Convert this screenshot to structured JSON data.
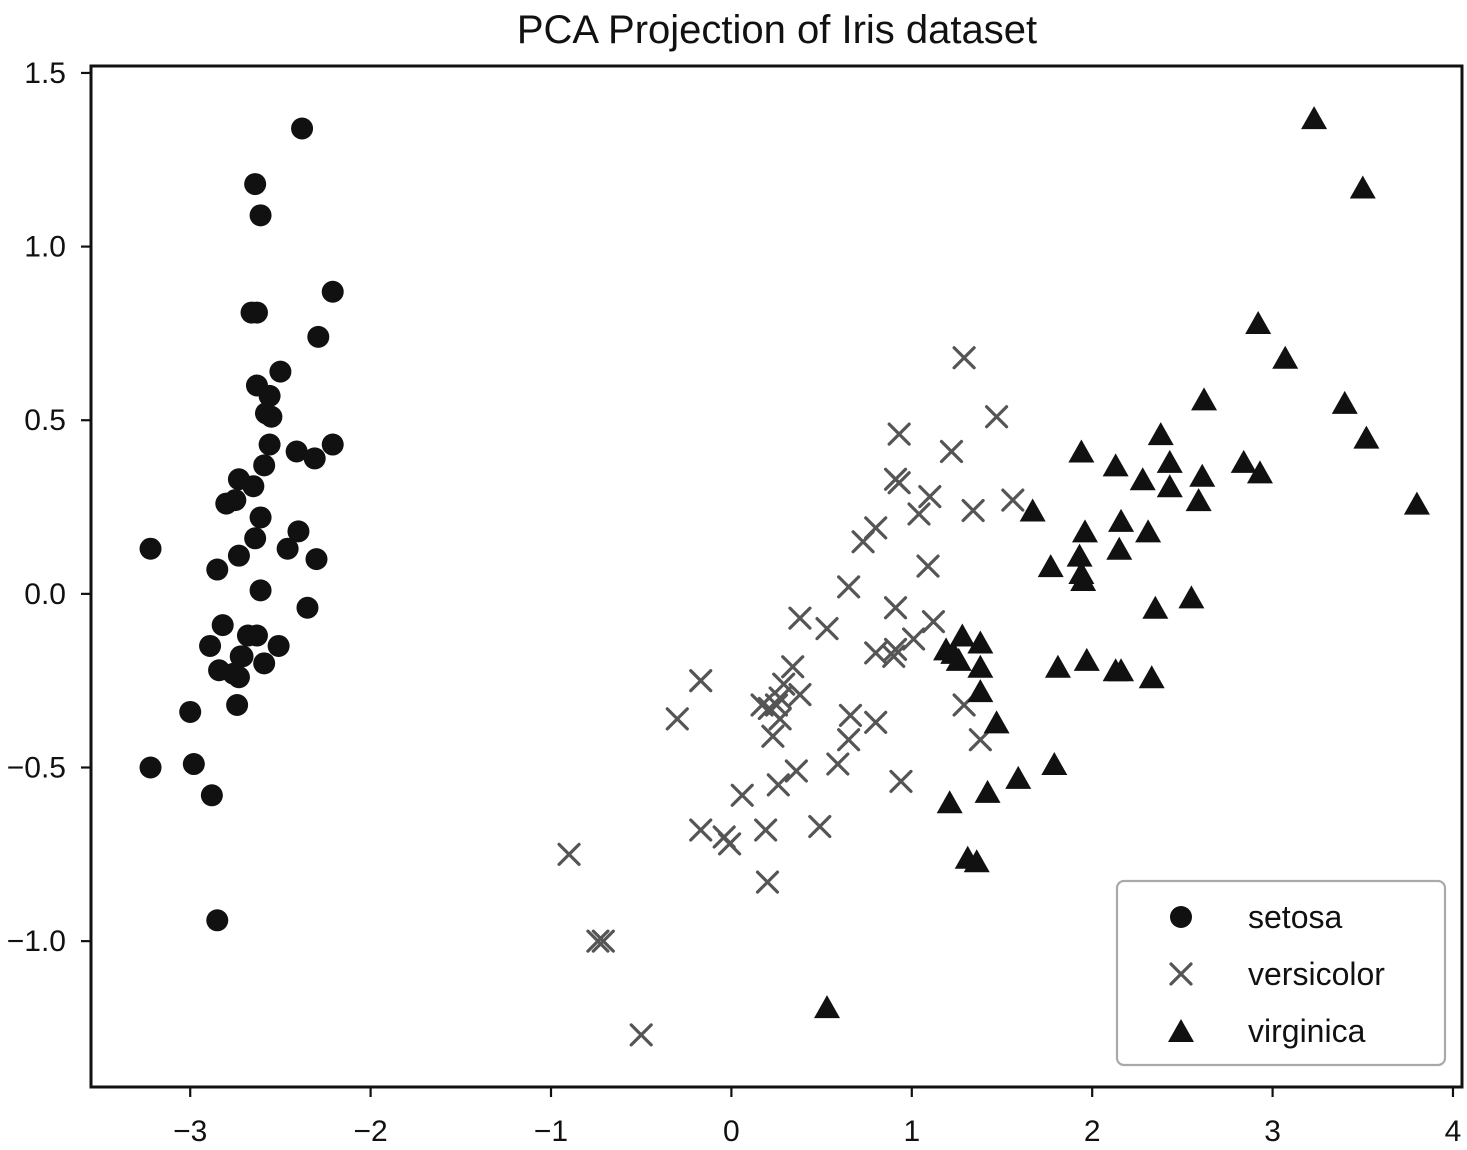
{
  "chart_data": {
    "type": "scatter",
    "title": "PCA Projection of Iris dataset",
    "xlabel": "",
    "ylabel": "",
    "xlim": [
      -3.55,
      4.05
    ],
    "ylim": [
      -1.42,
      1.52
    ],
    "grid": false,
    "legend_position": "bottom-right",
    "x_ticks": [
      {
        "value": -3,
        "label": "−3"
      },
      {
        "value": -2,
        "label": "−2"
      },
      {
        "value": -1,
        "label": "−1"
      },
      {
        "value": 0,
        "label": "0"
      },
      {
        "value": 1,
        "label": "1"
      },
      {
        "value": 2,
        "label": "2"
      },
      {
        "value": 3,
        "label": "3"
      },
      {
        "value": 4,
        "label": "4"
      }
    ],
    "y_ticks": [
      {
        "value": -1.0,
        "label": "−1.0"
      },
      {
        "value": -0.5,
        "label": "−0.5"
      },
      {
        "value": 0.0,
        "label": "0.0"
      },
      {
        "value": 0.5,
        "label": "0.5"
      },
      {
        "value": 1.0,
        "label": "1.0"
      },
      {
        "value": 1.5,
        "label": "1.5"
      }
    ],
    "series": [
      {
        "name": "setosa",
        "marker": "circle",
        "color": "#111111",
        "points": [
          [
            -2.38,
            1.34
          ],
          [
            -2.64,
            1.18
          ],
          [
            -2.61,
            1.09
          ],
          [
            -2.21,
            0.87
          ],
          [
            -2.63,
            0.81
          ],
          [
            -2.66,
            0.81
          ],
          [
            -2.29,
            0.74
          ],
          [
            -2.5,
            0.64
          ],
          [
            -2.63,
            0.6
          ],
          [
            -2.56,
            0.57
          ],
          [
            -2.58,
            0.52
          ],
          [
            -2.55,
            0.51
          ],
          [
            -2.56,
            0.43
          ],
          [
            -2.21,
            0.43
          ],
          [
            -2.41,
            0.41
          ],
          [
            -2.31,
            0.39
          ],
          [
            -2.59,
            0.37
          ],
          [
            -2.73,
            0.33
          ],
          [
            -2.65,
            0.31
          ],
          [
            -2.8,
            0.26
          ],
          [
            -2.75,
            0.27
          ],
          [
            -2.61,
            0.22
          ],
          [
            -2.4,
            0.18
          ],
          [
            -2.64,
            0.16
          ],
          [
            -2.73,
            0.11
          ],
          [
            -2.46,
            0.13
          ],
          [
            -2.3,
            0.1
          ],
          [
            -3.22,
            0.13
          ],
          [
            -2.85,
            0.07
          ],
          [
            -2.61,
            0.01
          ],
          [
            -2.35,
            -0.04
          ],
          [
            -2.82,
            -0.09
          ],
          [
            -2.89,
            -0.15
          ],
          [
            -2.51,
            -0.15
          ],
          [
            -2.68,
            -0.12
          ],
          [
            -2.63,
            -0.12
          ],
          [
            -2.71,
            -0.18
          ],
          [
            -2.59,
            -0.2
          ],
          [
            -2.72,
            -0.18
          ],
          [
            -2.84,
            -0.22
          ],
          [
            -2.76,
            -0.23
          ],
          [
            -2.73,
            -0.24
          ],
          [
            -2.74,
            -0.32
          ],
          [
            -3.0,
            -0.34
          ],
          [
            -2.98,
            -0.49
          ],
          [
            -3.22,
            -0.5
          ],
          [
            -2.88,
            -0.58
          ],
          [
            -2.85,
            -0.94
          ]
        ]
      },
      {
        "name": "versicolor",
        "marker": "x",
        "color": "#555555",
        "points": [
          [
            1.29,
            0.68
          ],
          [
            1.47,
            0.51
          ],
          [
            0.93,
            0.46
          ],
          [
            1.22,
            0.41
          ],
          [
            0.91,
            0.33
          ],
          [
            0.93,
            0.32
          ],
          [
            1.1,
            0.28
          ],
          [
            1.56,
            0.27
          ],
          [
            1.34,
            0.24
          ],
          [
            1.04,
            0.23
          ],
          [
            0.8,
            0.19
          ],
          [
            0.73,
            0.15
          ],
          [
            1.09,
            0.08
          ],
          [
            0.65,
            0.02
          ],
          [
            0.91,
            -0.04
          ],
          [
            0.38,
            -0.07
          ],
          [
            1.12,
            -0.08
          ],
          [
            0.53,
            -0.1
          ],
          [
            1.01,
            -0.13
          ],
          [
            0.8,
            -0.17
          ],
          [
            0.9,
            -0.18
          ],
          [
            0.91,
            -0.16
          ],
          [
            0.34,
            -0.21
          ],
          [
            -0.17,
            -0.25
          ],
          [
            0.29,
            -0.26
          ],
          [
            0.25,
            -0.32
          ],
          [
            0.38,
            -0.29
          ],
          [
            0.17,
            -0.32
          ],
          [
            0.27,
            -0.3
          ],
          [
            0.21,
            -0.33
          ],
          [
            0.27,
            -0.36
          ],
          [
            0.66,
            -0.35
          ],
          [
            0.8,
            -0.37
          ],
          [
            -0.3,
            -0.36
          ],
          [
            1.29,
            -0.32
          ],
          [
            0.23,
            -0.41
          ],
          [
            0.65,
            -0.42
          ],
          [
            1.38,
            -0.42
          ],
          [
            0.36,
            -0.51
          ],
          [
            0.59,
            -0.49
          ],
          [
            0.26,
            -0.55
          ],
          [
            0.94,
            -0.54
          ],
          [
            0.06,
            -0.58
          ],
          [
            0.49,
            -0.67
          ],
          [
            -0.17,
            -0.68
          ],
          [
            0.19,
            -0.68
          ],
          [
            -0.04,
            -0.7
          ],
          [
            -0.01,
            -0.72
          ],
          [
            0.2,
            -0.83
          ],
          [
            -0.9,
            -0.75
          ],
          [
            -0.74,
            -1.0
          ],
          [
            -0.71,
            -1.0
          ],
          [
            -0.5,
            -1.27
          ]
        ]
      },
      {
        "name": "virginica",
        "marker": "triangle",
        "color": "#111111",
        "points": [
          [
            3.23,
            1.37
          ],
          [
            3.5,
            1.17
          ],
          [
            2.92,
            0.78
          ],
          [
            3.07,
            0.68
          ],
          [
            2.62,
            0.56
          ],
          [
            3.4,
            0.55
          ],
          [
            2.38,
            0.46
          ],
          [
            3.52,
            0.45
          ],
          [
            1.94,
            0.41
          ],
          [
            2.43,
            0.38
          ],
          [
            2.13,
            0.37
          ],
          [
            2.84,
            0.38
          ],
          [
            2.93,
            0.35
          ],
          [
            2.61,
            0.34
          ],
          [
            2.28,
            0.33
          ],
          [
            2.43,
            0.31
          ],
          [
            2.59,
            0.27
          ],
          [
            3.8,
            0.26
          ],
          [
            1.67,
            0.24
          ],
          [
            2.16,
            0.21
          ],
          [
            2.31,
            0.18
          ],
          [
            1.96,
            0.18
          ],
          [
            2.15,
            0.13
          ],
          [
            1.93,
            0.11
          ],
          [
            1.77,
            0.08
          ],
          [
            1.94,
            0.06
          ],
          [
            1.95,
            0.04
          ],
          [
            2.55,
            -0.01
          ],
          [
            2.35,
            -0.04
          ],
          [
            1.28,
            -0.12
          ],
          [
            1.38,
            -0.14
          ],
          [
            1.19,
            -0.16
          ],
          [
            1.23,
            -0.17
          ],
          [
            1.26,
            -0.19
          ],
          [
            1.38,
            -0.21
          ],
          [
            1.81,
            -0.21
          ],
          [
            1.97,
            -0.19
          ],
          [
            2.13,
            -0.22
          ],
          [
            2.16,
            -0.22
          ],
          [
            2.33,
            -0.24
          ],
          [
            1.38,
            -0.28
          ],
          [
            1.47,
            -0.37
          ],
          [
            1.79,
            -0.49
          ],
          [
            1.59,
            -0.53
          ],
          [
            1.42,
            -0.57
          ],
          [
            1.21,
            -0.6
          ],
          [
            1.31,
            -0.76
          ],
          [
            1.36,
            -0.77
          ],
          [
            0.53,
            -1.19
          ]
        ]
      }
    ]
  }
}
